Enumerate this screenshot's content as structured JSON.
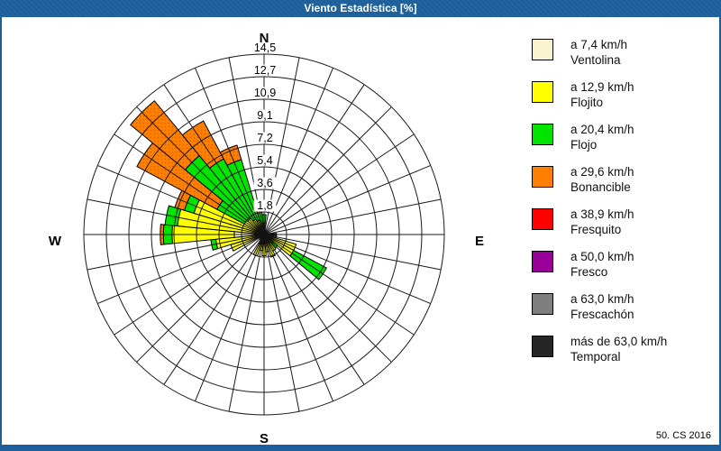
{
  "window": {
    "title": "Viento Estadística [%]",
    "footer_note": "50. CS 2016"
  },
  "compass": {
    "north": "N",
    "east": "E",
    "south": "S",
    "west": "W"
  },
  "legend": {
    "items": [
      {
        "speed_label": "a 7,4 km/h",
        "name": "Ventolina",
        "color": "#FAF3CF"
      },
      {
        "speed_label": "a 12,9 km/h",
        "name": "Flojito",
        "color": "#FFFF00"
      },
      {
        "speed_label": "a 20,4 km/h",
        "name": "Flojo",
        "color": "#00E400"
      },
      {
        "speed_label": "a 29,6 km/h",
        "name": "Bonancible",
        "color": "#FF8000"
      },
      {
        "speed_label": "a 38,9 km/h",
        "name": "Fresquito",
        "color": "#FF0000"
      },
      {
        "speed_label": "a 50,0 km/h",
        "name": "Fresco",
        "color": "#990099"
      },
      {
        "speed_label": "a 63,0 km/h",
        "name": "Frescachón",
        "color": "#7F7F7F"
      },
      {
        "speed_label": "más de 63,0 km/h",
        "name": "Temporal",
        "color": "#262626"
      }
    ]
  },
  "chart_data": {
    "type": "windrose-stacked-polar",
    "title": "Viento Estadística [%]",
    "units": "%",
    "max_value": 14.5,
    "ring_values": [
      1.8,
      3.6,
      5.4,
      7.2,
      9.1,
      10.9,
      12.7,
      14.5
    ],
    "ring_labels": [
      "1,8",
      "3,6",
      "5,4",
      "7,2",
      "9,1",
      "10,9",
      "12,7",
      "14,5"
    ],
    "sector_count": 32,
    "sector_width_deg": 11.25,
    "grid": "on",
    "legend_position": "right",
    "speed_classes": [
      {
        "label": "a 7,4 km/h",
        "name": "Ventolina",
        "color": "#FAF3CF"
      },
      {
        "label": "a 12,9 km/h",
        "name": "Flojito",
        "color": "#FFFF00"
      },
      {
        "label": "a 20,4 km/h",
        "name": "Flojo",
        "color": "#00E400"
      },
      {
        "label": "a 29,6 km/h",
        "name": "Bonancible",
        "color": "#FF8000"
      },
      {
        "label": "a 38,9 km/h",
        "name": "Fresquito",
        "color": "#FF0000"
      },
      {
        "label": "a 50,0 km/h",
        "name": "Fresco",
        "color": "#990099"
      },
      {
        "label": "a 63,0 km/h",
        "name": "Frescachón",
        "color": "#7F7F7F"
      },
      {
        "label": "más de 63,0 km/h",
        "name": "Temporal",
        "color": "#262626"
      }
    ],
    "note": "cumulative outer radius (%) per speed class, order = speed_classes",
    "directions": [
      {
        "dir": "N",
        "angle": 0.0,
        "cum": [
          0.2,
          0.9,
          1.6,
          1.6,
          1.6,
          1.6,
          1.6,
          1.6
        ]
      },
      {
        "dir": "NbE",
        "angle": 11.25,
        "cum": [
          0,
          0.4,
          0.4,
          0.4,
          0.4,
          0.4,
          0.4,
          0.4
        ]
      },
      {
        "dir": "NNE",
        "angle": 22.5,
        "cum": [
          0,
          0.3,
          0.3,
          0.3,
          0.3,
          0.3,
          0.3,
          0.3
        ]
      },
      {
        "dir": "NEbN",
        "angle": 33.75,
        "cum": [
          0,
          0.3,
          0.3,
          0.3,
          0.3,
          0.3,
          0.3,
          0.3
        ]
      },
      {
        "dir": "NE",
        "angle": 45.0,
        "cum": [
          0,
          0.3,
          0.3,
          0.3,
          0.3,
          0.3,
          0.3,
          0.3
        ]
      },
      {
        "dir": "NEbE",
        "angle": 56.25,
        "cum": [
          0,
          0.2,
          0.2,
          0.2,
          0.2,
          0.2,
          0.2,
          0.2
        ]
      },
      {
        "dir": "ENE",
        "angle": 67.5,
        "cum": [
          0,
          0.3,
          0.3,
          0.3,
          0.3,
          0.3,
          0.3,
          0.3
        ]
      },
      {
        "dir": "EbN",
        "angle": 78.75,
        "cum": [
          0,
          0.4,
          0.4,
          0.4,
          0.4,
          0.4,
          0.4,
          0.4
        ]
      },
      {
        "dir": "E",
        "angle": 90.0,
        "cum": [
          0,
          0,
          0,
          0,
          0,
          0,
          0,
          1.0
        ]
      },
      {
        "dir": "EbS",
        "angle": 101.25,
        "cum": [
          0,
          1.0,
          1.0,
          1.0,
          1.0,
          1.0,
          1.0,
          1.0
        ]
      },
      {
        "dir": "ESE",
        "angle": 112.5,
        "cum": [
          0,
          2.7,
          2.7,
          2.7,
          2.7,
          2.7,
          2.7,
          2.7
        ]
      },
      {
        "dir": "SEbE",
        "angle": 123.75,
        "cum": [
          0,
          2.7,
          5.7,
          5.7,
          5.7,
          5.7,
          5.7,
          5.7
        ]
      },
      {
        "dir": "SE",
        "angle": 135.0,
        "cum": [
          0,
          0.9,
          1.4,
          1.4,
          1.4,
          1.4,
          1.4,
          1.4
        ]
      },
      {
        "dir": "SEbS",
        "angle": 146.25,
        "cum": [
          0,
          1.5,
          1.5,
          1.5,
          1.5,
          1.5,
          1.5,
          1.5
        ]
      },
      {
        "dir": "SSE",
        "angle": 157.5,
        "cum": [
          0,
          1.9,
          1.9,
          1.9,
          1.9,
          1.9,
          1.9,
          1.9
        ]
      },
      {
        "dir": "SbE",
        "angle": 168.75,
        "cum": [
          0,
          1.4,
          1.4,
          1.4,
          1.4,
          1.4,
          1.4,
          1.4
        ]
      },
      {
        "dir": "S",
        "angle": 180.0,
        "cum": [
          0,
          1.7,
          1.7,
          1.7,
          1.7,
          1.7,
          1.7,
          1.7
        ]
      },
      {
        "dir": "SbW",
        "angle": 191.25,
        "cum": [
          0.7,
          1.3,
          1.3,
          1.3,
          1.3,
          1.3,
          1.3,
          1.3
        ]
      },
      {
        "dir": "SSW",
        "angle": 202.5,
        "cum": [
          0.8,
          1.8,
          1.8,
          1.8,
          1.8,
          1.8,
          1.8,
          1.8
        ]
      },
      {
        "dir": "SWbS",
        "angle": 213.75,
        "cum": [
          0,
          0.5,
          0.5,
          0.5,
          0.5,
          0.5,
          0.5,
          0.5
        ]
      },
      {
        "dir": "SW",
        "angle": 225.0,
        "cum": [
          0,
          0.4,
          0.4,
          0.4,
          0.4,
          0.4,
          0.4,
          0.4
        ]
      },
      {
        "dir": "SWbW",
        "angle": 236.25,
        "cum": [
          0,
          0.5,
          0.5,
          0.5,
          0.5,
          0.5,
          0.5,
          0.5
        ]
      },
      {
        "dir": "WSW",
        "angle": 247.5,
        "cum": [
          0,
          2.8,
          2.8,
          2.8,
          2.8,
          2.8,
          2.8,
          2.8
        ]
      },
      {
        "dir": "WbS",
        "angle": 258.75,
        "cum": [
          0,
          3.9,
          4.3,
          4.3,
          4.3,
          4.3,
          4.3,
          4.3
        ]
      },
      {
        "dir": "W",
        "angle": 270.0,
        "cum": [
          2.4,
          7.4,
          8.1,
          8.35,
          8.35,
          8.35,
          8.35,
          8.35
        ]
      },
      {
        "dir": "WbN",
        "angle": 281.25,
        "cum": [
          0,
          7.0,
          8.0,
          8.0,
          8.0,
          8.0,
          8.0,
          8.0
        ]
      },
      {
        "dir": "WNW",
        "angle": 292.5,
        "cum": [
          0,
          5.9,
          6.7,
          7.5,
          7.5,
          7.5,
          7.5,
          7.5
        ]
      },
      {
        "dir": "NWbW",
        "angle": 303.75,
        "cum": [
          0,
          1.8,
          4.3,
          11.6,
          11.6,
          11.6,
          11.6,
          11.6
        ]
      },
      {
        "dir": "NW",
        "angle": 315.0,
        "cum": [
          0,
          1.7,
          8.2,
          13.9,
          13.9,
          13.9,
          13.9,
          13.9
        ]
      },
      {
        "dir": "NWbN",
        "angle": 326.25,
        "cum": [
          0,
          1.4,
          6.9,
          10.35,
          10.35,
          10.35,
          10.35,
          10.35
        ]
      },
      {
        "dir": "NNW",
        "angle": 337.5,
        "cum": [
          0,
          1.2,
          6.3,
          7.5,
          7.5,
          7.5,
          7.5,
          7.5
        ]
      },
      {
        "dir": "NbW",
        "angle": 348.75,
        "cum": [
          0,
          0.6,
          1.8,
          2.4,
          2.4,
          2.4,
          2.4,
          2.4
        ]
      }
    ]
  }
}
